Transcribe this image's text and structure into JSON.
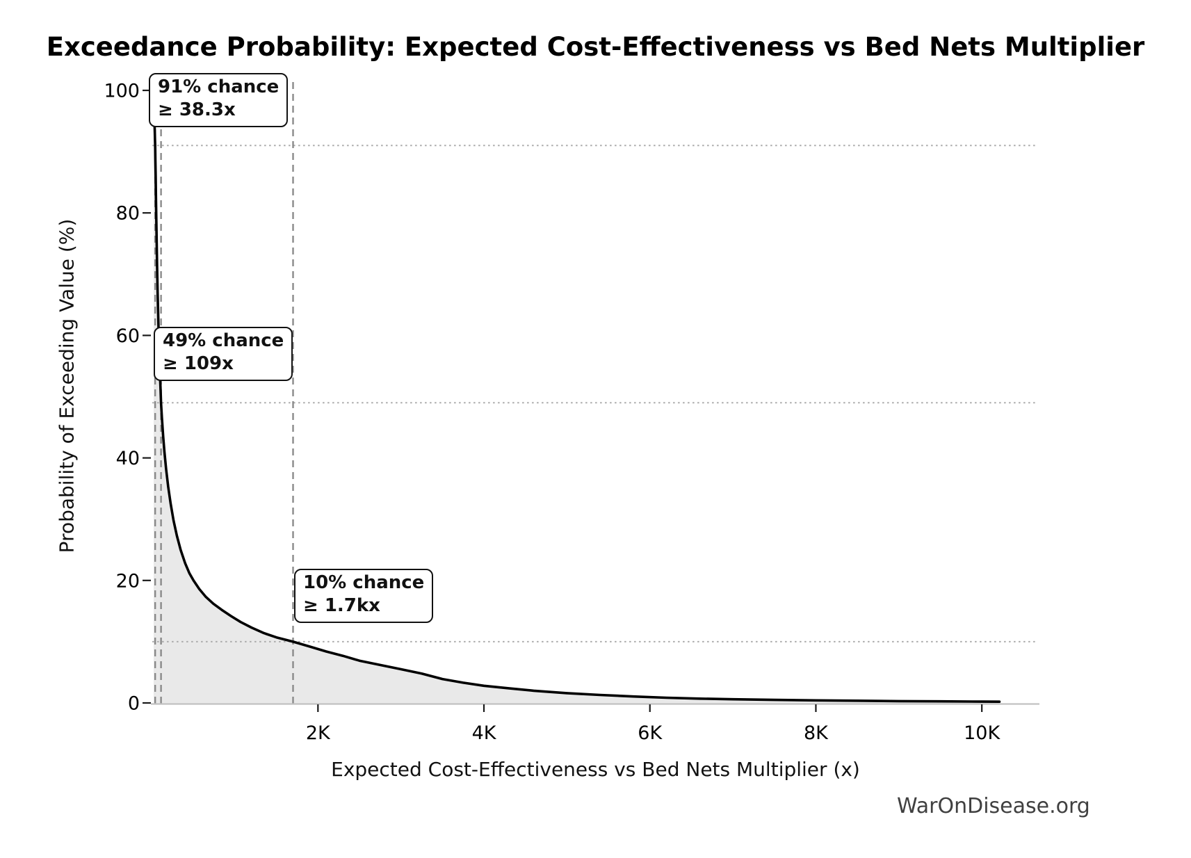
{
  "title": "Exceedance Probability: Expected Cost-Effectiveness vs Bed Nets Multiplier",
  "watermark": "WarOnDisease.org",
  "chart_data": {
    "type": "line",
    "title": "Exceedance Probability: Expected Cost-Effectiveness vs Bed Nets Multiplier",
    "xlabel": "Expected Cost-Effectiveness vs Bed Nets Multiplier (x)",
    "ylabel": "Probability of Exceeding Value (%)",
    "xlim": [
      0,
      10700
    ],
    "ylim": [
      0,
      101
    ],
    "grid": "off (reference lines only)",
    "legend": "none",
    "line_color": "#000000",
    "fill_under_curve": true,
    "fill_color": "#e9e9e9",
    "reference_line_styles": {
      "vertical": "dashed gray",
      "horizontal": "dotted light-gray"
    },
    "x_axis_ticks": [
      {
        "value": 2000,
        "label": "2K"
      },
      {
        "value": 4000,
        "label": "4K"
      },
      {
        "value": 6000,
        "label": "6K"
      },
      {
        "value": 8000,
        "label": "8K"
      },
      {
        "value": 10000,
        "label": "10K"
      }
    ],
    "y_axis_ticks": [
      {
        "value": 0,
        "label": "0"
      },
      {
        "value": 20,
        "label": "20"
      },
      {
        "value": 40,
        "label": "40"
      },
      {
        "value": 60,
        "label": "60"
      },
      {
        "value": 80,
        "label": "80"
      },
      {
        "value": 100,
        "label": "100"
      }
    ],
    "annotations": [
      {
        "label_line1": "91% chance",
        "label_line2": "≥ 38.3x",
        "x": 38.3,
        "probability": 91
      },
      {
        "label_line1": "49% chance",
        "label_line2": "≥ 109x",
        "x": 109,
        "probability": 49
      },
      {
        "label_line1": "10% chance",
        "label_line2": "≥ 1.7kx",
        "x": 1700,
        "probability": 10
      }
    ],
    "curve_points_x_vs_probability_pct": [
      [
        20,
        100
      ],
      [
        22,
        99.5
      ],
      [
        25,
        98
      ],
      [
        28,
        96.5
      ],
      [
        31,
        94.5
      ],
      [
        34,
        93
      ],
      [
        36,
        92
      ],
      [
        38.3,
        91
      ],
      [
        41,
        88.5
      ],
      [
        44,
        86
      ],
      [
        48,
        82.5
      ],
      [
        52,
        79
      ],
      [
        57,
        75
      ],
      [
        62,
        71
      ],
      [
        68,
        67
      ],
      [
        75,
        63
      ],
      [
        82,
        59.5
      ],
      [
        90,
        56
      ],
      [
        98,
        53
      ],
      [
        104,
        51
      ],
      [
        109,
        49
      ],
      [
        120,
        46.5
      ],
      [
        135,
        43.5
      ],
      [
        150,
        41
      ],
      [
        170,
        38.2
      ],
      [
        195,
        35.3
      ],
      [
        225,
        32.5
      ],
      [
        260,
        29.8
      ],
      [
        300,
        27.3
      ],
      [
        345,
        25
      ],
      [
        400,
        22.8
      ],
      [
        450,
        21.2
      ],
      [
        500,
        20
      ],
      [
        570,
        18.6
      ],
      [
        650,
        17.3
      ],
      [
        740,
        16.2
      ],
      [
        840,
        15.2
      ],
      [
        950,
        14.2
      ],
      [
        1070,
        13.2
      ],
      [
        1200,
        12.3
      ],
      [
        1350,
        11.4
      ],
      [
        1500,
        10.7
      ],
      [
        1700,
        10
      ],
      [
        1900,
        9.2
      ],
      [
        2100,
        8.4
      ],
      [
        2300,
        7.7
      ],
      [
        2500,
        6.9
      ],
      [
        2750,
        6.2
      ],
      [
        3000,
        5.5
      ],
      [
        3250,
        4.8
      ],
      [
        3500,
        3.9
      ],
      [
        3750,
        3.3
      ],
      [
        4000,
        2.8
      ],
      [
        4300,
        2.4
      ],
      [
        4600,
        2.0
      ],
      [
        5000,
        1.6
      ],
      [
        5400,
        1.3
      ],
      [
        5800,
        1.05
      ],
      [
        6200,
        0.85
      ],
      [
        6600,
        0.7
      ],
      [
        7000,
        0.6
      ],
      [
        7500,
        0.5
      ],
      [
        8000,
        0.42
      ],
      [
        8500,
        0.36
      ],
      [
        9000,
        0.3
      ],
      [
        9500,
        0.26
      ],
      [
        10000,
        0.22
      ],
      [
        10212,
        0.2
      ]
    ]
  }
}
